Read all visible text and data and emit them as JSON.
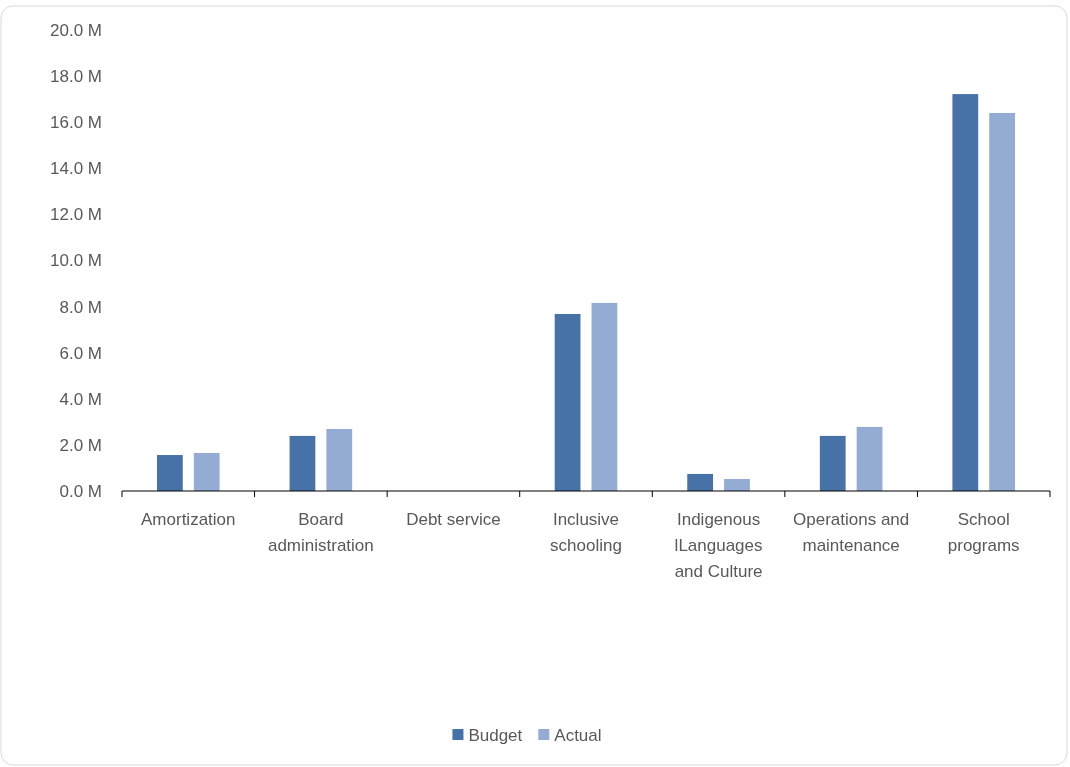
{
  "chart_data": {
    "type": "bar",
    "categories": [
      "Amortization",
      "Board administration",
      "Debt service",
      "Inclusive schooling",
      "Indigenous lLanguages and Culture",
      "Operations and maintenance",
      "School programs"
    ],
    "series": [
      {
        "name": "Budget",
        "color": "#4672a8",
        "values": [
          1.56,
          2.39,
          0,
          7.68,
          0.74,
          2.39,
          17.22
        ]
      },
      {
        "name": "Actual",
        "color": "#94abd3",
        "values": [
          1.65,
          2.69,
          0,
          8.16,
          0.52,
          2.78,
          16.4
        ]
      }
    ],
    "ylim": [
      0,
      20
    ],
    "yticks": [
      {
        "value": 0,
        "label": "0.0 M"
      },
      {
        "value": 2,
        "label": "2.0 M"
      },
      {
        "value": 4,
        "label": "4.0 M"
      },
      {
        "value": 6,
        "label": "6.0 M"
      },
      {
        "value": 8,
        "label": "8.0 M"
      },
      {
        "value": 10,
        "label": "10.0 M"
      },
      {
        "value": 12,
        "label": "12.0 M"
      },
      {
        "value": 14,
        "label": "14.0 M"
      },
      {
        "value": 16,
        "label": "16.0 M"
      },
      {
        "value": 18,
        "label": "18.0 M"
      },
      {
        "value": 20,
        "label": "20.0 M"
      }
    ],
    "grid": false,
    "legend": "bottom"
  }
}
